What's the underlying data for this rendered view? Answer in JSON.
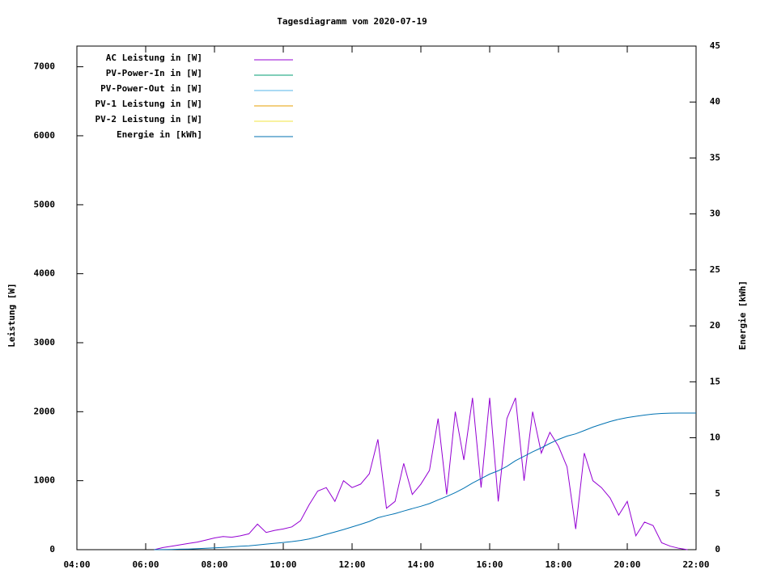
{
  "chart_data": {
    "type": "line",
    "title": "Tagesdiagramm vom 2020-07-19",
    "y_label": "Leistung [W]",
    "y2_label": "Energie [kWh]",
    "x": [
      "06:15",
      "06:30",
      "06:45",
      "07:00",
      "07:15",
      "07:30",
      "07:45",
      "08:00",
      "08:15",
      "08:30",
      "08:45",
      "09:00",
      "09:15",
      "09:30",
      "09:45",
      "10:00",
      "10:15",
      "10:30",
      "10:45",
      "11:00",
      "11:15",
      "11:30",
      "11:45",
      "12:00",
      "12:15",
      "12:30",
      "12:45",
      "13:00",
      "13:15",
      "13:30",
      "13:45",
      "14:00",
      "14:15",
      "14:30",
      "14:45",
      "15:00",
      "15:15",
      "15:30",
      "15:45",
      "16:00",
      "16:15",
      "16:30",
      "16:45",
      "17:00",
      "17:15",
      "17:30",
      "17:45",
      "18:00",
      "18:15",
      "18:30",
      "18:45",
      "19:00",
      "19:15",
      "19:30",
      "19:45",
      "20:00",
      "20:15",
      "20:30",
      "20:45",
      "21:00",
      "21:15",
      "21:30",
      "21:45",
      "22:00"
    ],
    "xlim": [
      "04:00",
      "22:00"
    ],
    "xticks": [
      "04:00",
      "06:00",
      "08:00",
      "10:00",
      "12:00",
      "14:00",
      "16:00",
      "18:00",
      "20:00",
      "22:00"
    ],
    "ylim": [
      0,
      7300
    ],
    "yticks": [
      0,
      1000,
      2000,
      3000,
      4000,
      5000,
      6000,
      7000
    ],
    "y2lim": [
      0,
      45
    ],
    "y2ticks": [
      0,
      5,
      10,
      15,
      20,
      25,
      30,
      35,
      40,
      45
    ],
    "series": [
      {
        "name": "AC Leistung in [W]",
        "color": "#9400d3",
        "values": [
          0,
          30,
          50,
          70,
          90,
          110,
          140,
          170,
          190,
          180,
          200,
          230,
          370,
          250,
          280,
          300,
          330,
          420,
          650,
          850,
          900,
          700,
          1000,
          900,
          950,
          1100,
          1600,
          600,
          700,
          1250,
          800,
          950,
          1150,
          1900,
          800,
          2000,
          1300,
          2200,
          900,
          2200,
          700,
          1900,
          2200,
          1000,
          2000,
          1400,
          1700,
          1500,
          1200,
          300,
          1400,
          1000,
          900,
          750,
          500,
          700,
          200,
          400,
          350,
          100,
          50,
          20,
          0,
          null
        ]
      },
      {
        "name": "PV-Power-In in [W]",
        "color": "#009e73",
        "values": [
          null,
          null,
          null,
          null,
          null,
          null,
          null,
          null,
          null,
          null,
          null,
          null,
          null,
          null,
          null,
          null,
          null,
          null,
          null,
          null,
          null,
          null,
          null,
          null,
          null,
          null,
          null,
          null,
          null,
          null,
          null,
          null,
          null,
          null,
          null,
          null,
          null,
          null,
          null,
          null,
          null,
          null,
          null,
          null,
          null,
          null,
          null,
          null,
          null,
          null,
          null,
          null,
          null,
          null,
          null,
          null,
          null,
          null,
          null,
          null,
          null,
          null,
          null,
          null
        ]
      },
      {
        "name": "PV-Power-Out in [W]",
        "color": "#56b4e9",
        "values": [
          null,
          null,
          null,
          null,
          null,
          null,
          null,
          null,
          null,
          null,
          null,
          null,
          null,
          null,
          null,
          null,
          null,
          null,
          null,
          null,
          null,
          null,
          null,
          null,
          null,
          null,
          null,
          null,
          null,
          null,
          null,
          null,
          null,
          null,
          null,
          null,
          null,
          null,
          null,
          null,
          null,
          null,
          null,
          null,
          null,
          null,
          null,
          null,
          null,
          null,
          null,
          null,
          null,
          null,
          null,
          null,
          null,
          null,
          null,
          null,
          null,
          null,
          null,
          null
        ]
      },
      {
        "name": "PV-1 Leistung in [W]",
        "color": "#e69f00",
        "values": [
          null,
          null,
          null,
          null,
          null,
          null,
          null,
          null,
          null,
          null,
          null,
          null,
          null,
          null,
          null,
          null,
          null,
          null,
          null,
          null,
          null,
          null,
          null,
          null,
          null,
          null,
          null,
          null,
          null,
          null,
          null,
          null,
          null,
          null,
          null,
          null,
          null,
          null,
          null,
          null,
          null,
          null,
          null,
          null,
          null,
          null,
          null,
          null,
          null,
          null,
          null,
          null,
          null,
          null,
          null,
          null,
          null,
          null,
          null,
          null,
          null,
          null,
          null,
          null
        ]
      },
      {
        "name": "PV-2 Leistung in [W]",
        "color": "#f0e442",
        "values": [
          null,
          null,
          null,
          null,
          null,
          null,
          null,
          null,
          null,
          null,
          null,
          null,
          null,
          null,
          null,
          null,
          null,
          null,
          null,
          null,
          null,
          null,
          null,
          null,
          null,
          null,
          null,
          null,
          null,
          null,
          null,
          null,
          null,
          null,
          null,
          null,
          null,
          null,
          null,
          null,
          null,
          null,
          null,
          null,
          null,
          null,
          null,
          null,
          null,
          null,
          null,
          null,
          null,
          null,
          null,
          null,
          null,
          null,
          null,
          null,
          null,
          null,
          null,
          null
        ]
      },
      {
        "name": "Energie in [kWh]",
        "color": "#0072b2",
        "axis": "y2",
        "values": [
          0,
          0.01,
          0.02,
          0.04,
          0.06,
          0.09,
          0.12,
          0.16,
          0.2,
          0.25,
          0.3,
          0.35,
          0.42,
          0.5,
          0.57,
          0.64,
          0.72,
          0.82,
          0.96,
          1.15,
          1.37,
          1.58,
          1.8,
          2.03,
          2.27,
          2.52,
          2.85,
          3.05,
          3.22,
          3.45,
          3.67,
          3.88,
          4.12,
          4.45,
          4.75,
          5.1,
          5.5,
          5.95,
          6.35,
          6.75,
          7.05,
          7.45,
          7.95,
          8.35,
          8.75,
          9.1,
          9.5,
          9.85,
          10.15,
          10.35,
          10.65,
          10.95,
          11.2,
          11.45,
          11.65,
          11.8,
          11.92,
          12.03,
          12.12,
          12.17,
          12.2,
          12.21,
          12.21,
          12.21
        ]
      }
    ]
  }
}
